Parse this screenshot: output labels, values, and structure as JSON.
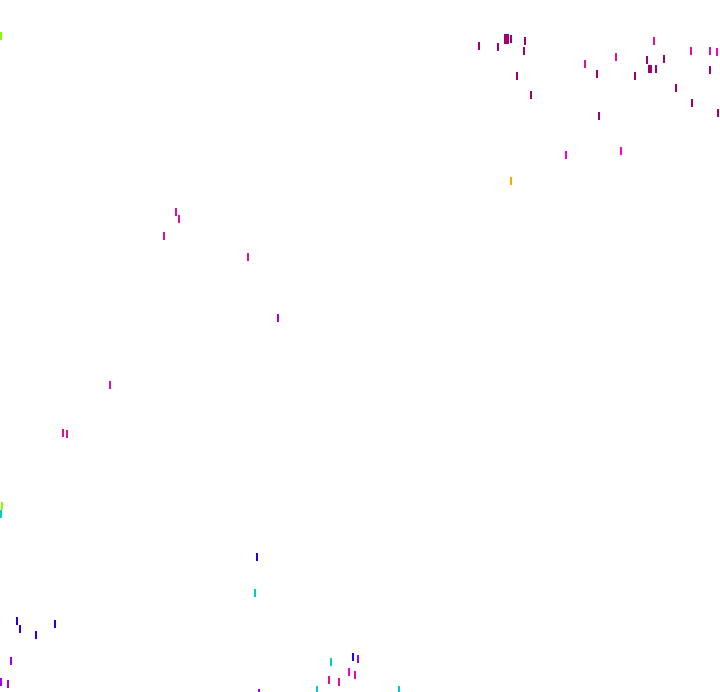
{
  "colors": {
    "background": "#ffffff",
    "dark_magenta": "#a0006e",
    "magenta": "#e0109a",
    "pink": "#ff00cc",
    "orange": "#ffa500",
    "violet": "#9900ff",
    "blue": "#2200ee",
    "cyan": "#00cccc",
    "lime": "#88ff00"
  }
}
